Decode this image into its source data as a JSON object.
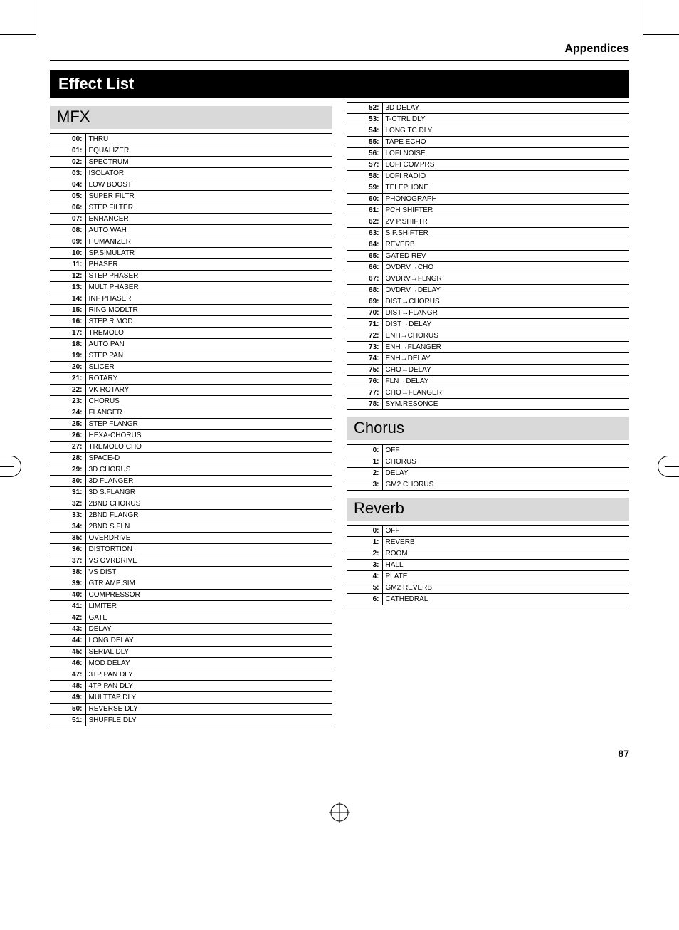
{
  "header": {
    "appendices": "Appendices"
  },
  "title": "Effect List",
  "sections": {
    "mfx": "MFX",
    "chorus": "Chorus",
    "reverb": "Reverb"
  },
  "page_number": "87",
  "mfx_a": [
    {
      "n": "00:",
      "v": "THRU"
    },
    {
      "n": "01:",
      "v": "EQUALIZER"
    },
    {
      "n": "02:",
      "v": "SPECTRUM"
    },
    {
      "n": "03:",
      "v": "ISOLATOR"
    },
    {
      "n": "04:",
      "v": "LOW BOOST"
    },
    {
      "n": "05:",
      "v": "SUPER FILTR"
    },
    {
      "n": "06:",
      "v": "STEP FILTER"
    },
    {
      "n": "07:",
      "v": "ENHANCER"
    },
    {
      "n": "08:",
      "v": "AUTO WAH"
    },
    {
      "n": "09:",
      "v": "HUMANIZER"
    },
    {
      "n": "10:",
      "v": "SP.SIMULATR"
    },
    {
      "n": "11:",
      "v": "PHASER"
    },
    {
      "n": "12:",
      "v": "STEP PHASER"
    },
    {
      "n": "13:",
      "v": "MULT PHASER"
    },
    {
      "n": "14:",
      "v": "INF PHASER"
    },
    {
      "n": "15:",
      "v": "RING MODLTR"
    },
    {
      "n": "16:",
      "v": "STEP R.MOD"
    },
    {
      "n": "17:",
      "v": "TREMOLO"
    },
    {
      "n": "18:",
      "v": "AUTO PAN"
    },
    {
      "n": "19:",
      "v": "STEP PAN"
    },
    {
      "n": "20:",
      "v": "SLICER"
    },
    {
      "n": "21:",
      "v": "ROTARY"
    },
    {
      "n": "22:",
      "v": "VK ROTARY"
    },
    {
      "n": "23:",
      "v": "CHORUS"
    },
    {
      "n": "24:",
      "v": "FLANGER"
    },
    {
      "n": "25:",
      "v": "STEP FLANGR"
    },
    {
      "n": "26:",
      "v": "HEXA-CHORUS"
    },
    {
      "n": "27:",
      "v": "TREMOLO CHO"
    },
    {
      "n": "28:",
      "v": "SPACE-D"
    },
    {
      "n": "29:",
      "v": "3D CHORUS"
    },
    {
      "n": "30:",
      "v": "3D FLANGER"
    },
    {
      "n": "31:",
      "v": "3D S.FLANGR"
    },
    {
      "n": "32:",
      "v": "2BND CHORUS"
    },
    {
      "n": "33:",
      "v": "2BND FLANGR"
    },
    {
      "n": "34:",
      "v": "2BND S.FLN"
    },
    {
      "n": "35:",
      "v": "OVERDRIVE"
    },
    {
      "n": "36:",
      "v": "DISTORTION"
    },
    {
      "n": "37:",
      "v": "VS OVRDRIVE"
    },
    {
      "n": "38:",
      "v": "VS DIST"
    },
    {
      "n": "39:",
      "v": "GTR AMP SIM"
    },
    {
      "n": "40:",
      "v": "COMPRESSOR"
    },
    {
      "n": "41:",
      "v": "LIMITER"
    },
    {
      "n": "42:",
      "v": "GATE"
    },
    {
      "n": "43:",
      "v": "DELAY"
    },
    {
      "n": "44:",
      "v": "LONG DELAY"
    },
    {
      "n": "45:",
      "v": "SERIAL DLY"
    },
    {
      "n": "46:",
      "v": "MOD DELAY"
    },
    {
      "n": "47:",
      "v": "3TP PAN DLY"
    },
    {
      "n": "48:",
      "v": "4TP PAN DLY"
    },
    {
      "n": "49:",
      "v": "MULTTAP DLY"
    },
    {
      "n": "50:",
      "v": "REVERSE DLY"
    },
    {
      "n": "51:",
      "v": "SHUFFLE DLY"
    }
  ],
  "mfx_b": [
    {
      "n": "52:",
      "v": "3D DELAY"
    },
    {
      "n": "53:",
      "v": "T-CTRL DLY"
    },
    {
      "n": "54:",
      "v": "LONG TC DLY"
    },
    {
      "n": "55:",
      "v": "TAPE ECHO"
    },
    {
      "n": "56:",
      "v": "LOFI NOISE"
    },
    {
      "n": "57:",
      "v": "LOFI COMPRS"
    },
    {
      "n": "58:",
      "v": "LOFI RADIO"
    },
    {
      "n": "59:",
      "v": "TELEPHONE"
    },
    {
      "n": "60:",
      "v": "PHONOGRAPH"
    },
    {
      "n": "61:",
      "v": "PCH SHIFTER"
    },
    {
      "n": "62:",
      "v": "2V P.SHIFTR"
    },
    {
      "n": "63:",
      "v": "S.P.SHIFTER"
    },
    {
      "n": "64:",
      "v": "REVERB"
    },
    {
      "n": "65:",
      "v": "GATED REV"
    },
    {
      "n": "66:",
      "v": "OVDRV→CHO"
    },
    {
      "n": "67:",
      "v": "OVDRV→FLNGR"
    },
    {
      "n": "68:",
      "v": "OVDRV→DELAY"
    },
    {
      "n": "69:",
      "v": "DIST→CHORUS"
    },
    {
      "n": "70:",
      "v": "DIST→FLANGR"
    },
    {
      "n": "71:",
      "v": "DIST→DELAY"
    },
    {
      "n": "72:",
      "v": "ENH→CHORUS"
    },
    {
      "n": "73:",
      "v": "ENH→FLANGER"
    },
    {
      "n": "74:",
      "v": "ENH→DELAY"
    },
    {
      "n": "75:",
      "v": "CHO→DELAY"
    },
    {
      "n": "76:",
      "v": "FLN→DELAY"
    },
    {
      "n": "77:",
      "v": "CHO→FLANGER"
    },
    {
      "n": "78:",
      "v": "SYM.RESONCE"
    }
  ],
  "chorus": [
    {
      "n": "0:",
      "v": "OFF"
    },
    {
      "n": "1:",
      "v": "CHORUS"
    },
    {
      "n": "2:",
      "v": "DELAY"
    },
    {
      "n": "3:",
      "v": "GM2 CHORUS"
    }
  ],
  "reverb": [
    {
      "n": "0:",
      "v": "OFF"
    },
    {
      "n": "1:",
      "v": "REVERB"
    },
    {
      "n": "2:",
      "v": "ROOM"
    },
    {
      "n": "3:",
      "v": "HALL"
    },
    {
      "n": "4:",
      "v": "PLATE"
    },
    {
      "n": "5:",
      "v": "GM2 REVERB"
    },
    {
      "n": "6:",
      "v": "CATHEDRAL"
    }
  ]
}
